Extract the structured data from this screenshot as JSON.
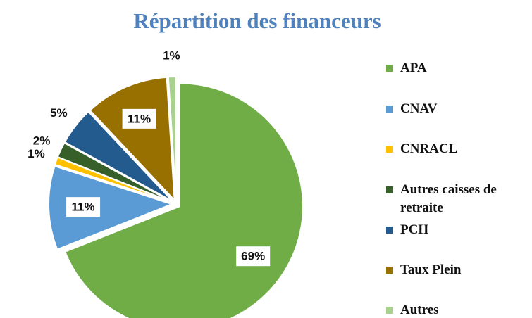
{
  "chart_data": {
    "type": "pie",
    "title": "Répartition des financeurs",
    "categories": [
      "APA",
      "CNAV",
      "CNRACL",
      "Autres caisses de retraite",
      "PCH",
      "Taux Plein",
      "Autres"
    ],
    "values": [
      69,
      11,
      1,
      2,
      5,
      11,
      1
    ],
    "value_labels": [
      "69%",
      "11%",
      "1%",
      "2%",
      "5%",
      "11%",
      "1%"
    ],
    "colors": [
      "#70ad47",
      "#5b9bd5",
      "#ffc000",
      "#375f2a",
      "#245b8f",
      "#987000",
      "#a9d18e"
    ]
  }
}
